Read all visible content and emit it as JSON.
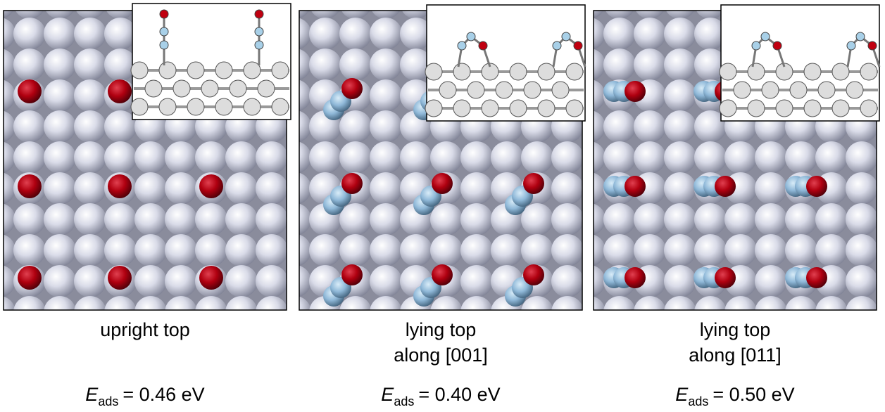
{
  "panels": [
    {
      "caption": [
        "upright top"
      ],
      "energy": {
        "symbol": "E",
        "subscript": "ads",
        "text": "= 0.46 eV"
      }
    },
    {
      "caption": [
        "lying top",
        "along [001]"
      ],
      "energy": {
        "symbol": "E",
        "subscript": "ads",
        "text": "= 0.40 eV"
      }
    },
    {
      "caption": [
        "lying top",
        "along [011]"
      ],
      "energy": {
        "symbol": "E",
        "subscript": "ads",
        "text": "= 0.50 eV"
      }
    }
  ]
}
